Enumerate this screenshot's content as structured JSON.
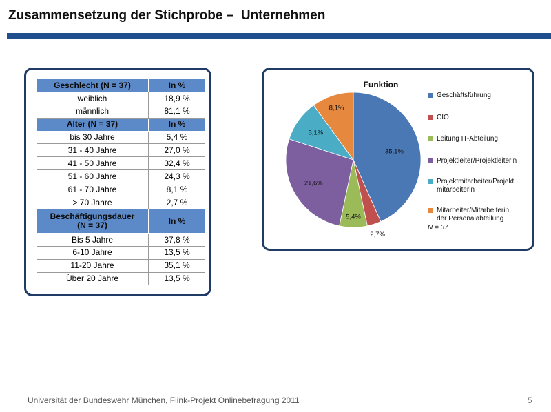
{
  "slide": {
    "title": "Zusammensetzung der Stichprobe –  Unternehmen",
    "footer": "Universität der Bundeswehr München, Flink-Projekt Onlinebefragung  2011",
    "page_number": "5"
  },
  "colors": {
    "title_rule": "#1f4f8c",
    "panel_border": "#1f3b66",
    "table_header": "#5c89c7"
  },
  "table": {
    "sections": [
      {
        "header": "Geschlecht (N = 37)",
        "value_header": "In %",
        "rows": [
          {
            "label": "weiblich",
            "value": "18,9 %"
          },
          {
            "label": "männlich",
            "value": "81,1 %"
          }
        ]
      },
      {
        "header": "Alter (N = 37)",
        "value_header": "In %",
        "rows": [
          {
            "label": "bis 30 Jahre",
            "value": "5,4 %"
          },
          {
            "label": "31 - 40 Jahre",
            "value": "27,0 %"
          },
          {
            "label": "41 - 50 Jahre",
            "value": "32,4 %"
          },
          {
            "label": "51 - 60 Jahre",
            "value": "24,3 %"
          },
          {
            "label": "61 - 70 Jahre",
            "value": "8,1 %"
          },
          {
            "label": "> 70 Jahre",
            "value": "2,7 %"
          }
        ]
      },
      {
        "header_line1": "Beschäftigungsdauer",
        "header_line2": "(N = 37)",
        "value_header": "In %",
        "rows": [
          {
            "label": "Bis 5 Jahre",
            "value": "37,8 %"
          },
          {
            "label": "6-10 Jahre",
            "value": "13,5 %"
          },
          {
            "label": "11-20 Jahre",
            "value": "35,1 %"
          },
          {
            "label": "Über 20 Jahre",
            "value": "13,5 %"
          }
        ]
      }
    ]
  },
  "chart_data": {
    "type": "pie",
    "title": "Funktion",
    "slices": [
      {
        "name": "Geschäftsführung",
        "legend_lines": [
          "Geschäftsführung"
        ],
        "value": 35.1,
        "label": "35,1%",
        "color": "#4a78b5"
      },
      {
        "name": "CIO",
        "legend_lines": [
          "CIO"
        ],
        "value": 2.7,
        "label": "2,7%",
        "color": "#c0504d"
      },
      {
        "name": "Leitung IT-Abteilung",
        "legend_lines": [
          "Leitung IT-Abteilung"
        ],
        "value": 5.4,
        "label": "5,4%",
        "color": "#9bbb59"
      },
      {
        "name": "Projektleiter/Projektleiterin",
        "legend_lines": [
          "Projektleiter/Projektleiterin"
        ],
        "value": 21.6,
        "label": "21,6%",
        "color": "#7d5fa0"
      },
      {
        "name": "Projektmitarbeiter/Projektmitarbeiterin",
        "legend_lines": [
          "Projektmitarbeiter/Projekt",
          "mitarbeiterin"
        ],
        "value": 8.1,
        "label": "8,1%",
        "color": "#4bacc6"
      },
      {
        "name": "Mitarbeiter/Mitarbeiterin der Personalabteilung",
        "legend_lines": [
          "Mitarbeiter/Mitarbeiterin",
          "der Personalabteilung"
        ],
        "value": 8.1,
        "label": "8,1%",
        "color": "#e6883e"
      }
    ],
    "note": "N = 37",
    "legend_position": "right"
  }
}
